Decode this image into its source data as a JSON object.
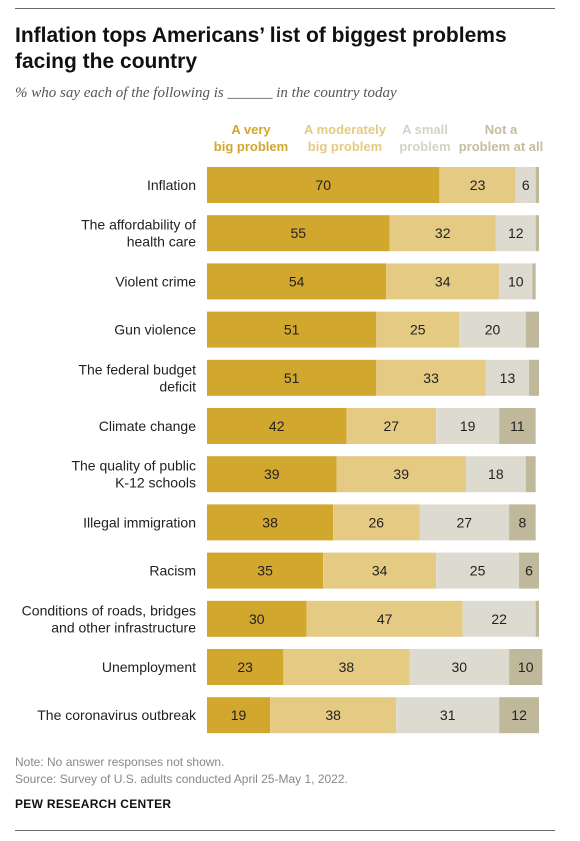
{
  "header": {
    "title": "Inflation tops Americans’ list of biggest problems facing the country",
    "subtitle": "% who say each of the following is ______ in the country today"
  },
  "chart_data": {
    "type": "bar",
    "orientation": "horizontal",
    "stacked": true,
    "categories": [
      "Inflation",
      "The affordability of health care",
      "Violent crime",
      "Gun violence",
      "The federal budget deficit",
      "Climate change",
      "The quality of public K-12 schools",
      "Illegal immigration",
      "Racism",
      "Conditions of roads, bridges and other infrastructure",
      "Unemployment",
      "The coronavirus outbreak"
    ],
    "category_lines": [
      [
        "Inflation"
      ],
      [
        "The affordability of",
        "health care"
      ],
      [
        "Violent crime"
      ],
      [
        "Gun violence"
      ],
      [
        "The federal budget",
        "deficit"
      ],
      [
        "Climate change"
      ],
      [
        "The quality of public",
        "K-12 schools"
      ],
      [
        "Illegal immigration"
      ],
      [
        "Racism"
      ],
      [
        "Conditions of roads, bridges",
        "and other infrastructure"
      ],
      [
        "Unemployment"
      ],
      [
        "The coronavirus outbreak"
      ]
    ],
    "series": [
      {
        "name": "A very big problem",
        "legend_lines": [
          "A very",
          "big problem"
        ],
        "color": "#d2a72e",
        "values": [
          70,
          55,
          54,
          51,
          51,
          42,
          39,
          38,
          35,
          30,
          23,
          19
        ]
      },
      {
        "name": "A moderately big problem",
        "legend_lines": [
          "A moderately",
          "big problem"
        ],
        "color": "#e5ca83",
        "values": [
          23,
          32,
          34,
          25,
          33,
          27,
          39,
          26,
          34,
          47,
          38,
          38
        ]
      },
      {
        "name": "A small problem",
        "legend_lines": [
          "A small",
          "problem"
        ],
        "color": "#dddbd0",
        "values": [
          6,
          12,
          10,
          20,
          13,
          19,
          18,
          27,
          25,
          22,
          30,
          31
        ]
      },
      {
        "name": "Not a problem at all",
        "legend_lines": [
          "Not a",
          "problem at all"
        ],
        "color": "#bfb89a",
        "values": [
          1,
          1,
          1,
          4,
          3,
          11,
          3,
          8,
          6,
          1,
          10,
          12
        ]
      }
    ],
    "labels_shown": [
      [
        "70",
        "23",
        "6",
        ""
      ],
      [
        "55",
        "32",
        "12",
        ""
      ],
      [
        "54",
        "34",
        "10",
        ""
      ],
      [
        "51",
        "25",
        "20",
        ""
      ],
      [
        "51",
        "33",
        "13",
        ""
      ],
      [
        "42",
        "27",
        "19",
        "11"
      ],
      [
        "39",
        "39",
        "18",
        ""
      ],
      [
        "38",
        "26",
        "27",
        "8"
      ],
      [
        "35",
        "34",
        "25",
        "6"
      ],
      [
        "30",
        "47",
        "22",
        ""
      ],
      [
        "23",
        "38",
        "30",
        "10"
      ],
      [
        "19",
        "38",
        "31",
        "12"
      ]
    ],
    "xlim": [
      0,
      100
    ],
    "grid": false,
    "legend_position": "top"
  },
  "footer": {
    "note": "Note: No answer responses not shown.",
    "source": "Source: Survey of U.S. adults conducted April 25-May 1, 2022.",
    "brand": "PEW RESEARCH CENTER"
  }
}
